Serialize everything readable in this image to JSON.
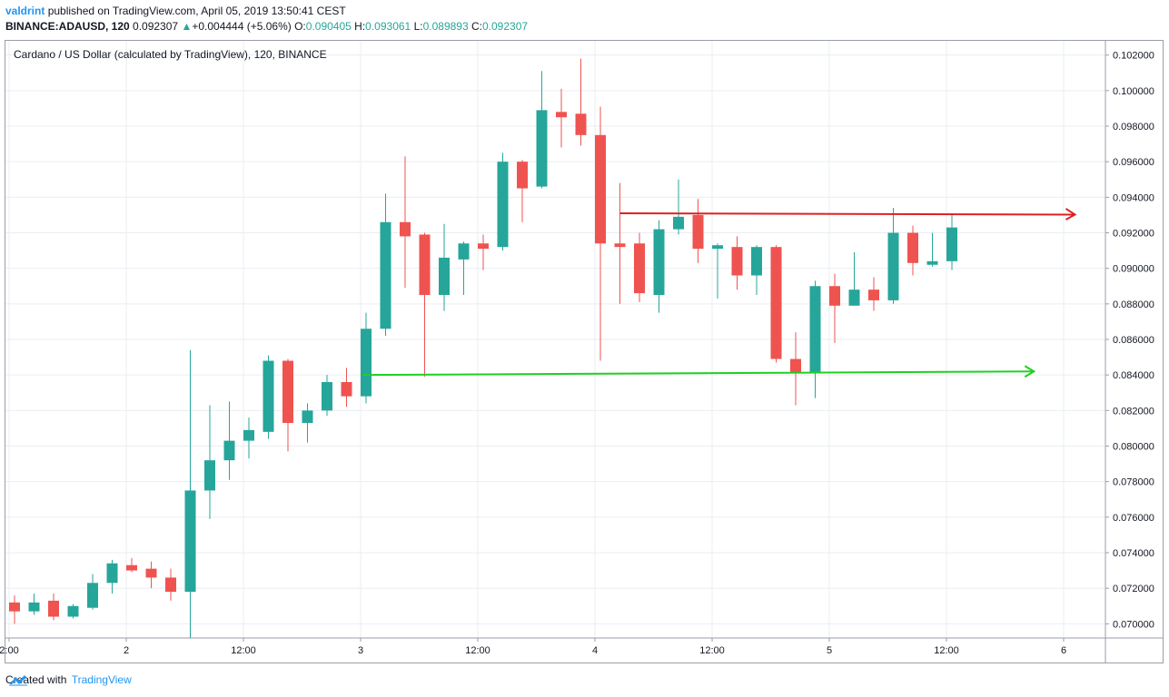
{
  "header": {
    "user": "valdrint",
    "published_text": "published on TradingView.com, April 05, 2019 13:50:41 CEST",
    "symbol": "BINANCE:ADAUSD, 120",
    "last": "0.092307",
    "change_arrow": "▲",
    "change": "+0.004444 (+5.06%)",
    "o_label": "O:",
    "o_value": "0.090405",
    "h_label": "H:",
    "h_value": "0.093061",
    "l_label": "L:",
    "l_value": "0.089893",
    "c_label": "C:",
    "c_value": "0.092307"
  },
  "footer": {
    "created_with": "Created with",
    "brand": "TradingView"
  },
  "colors": {
    "up": "#26a69a",
    "down": "#ef5350",
    "resistance": "#e02020",
    "support": "#20d020",
    "grid": "#e9eef2"
  },
  "chart_data": {
    "type": "candlestick",
    "title": "Cardano / US Dollar (calculated by TradingView), 120, BINANCE",
    "ylim": [
      0.0692,
      0.1028
    ],
    "y_ticks": [
      "0.102000",
      "0.100000",
      "0.098000",
      "0.096000",
      "0.094000",
      "0.092000",
      "0.090000",
      "0.088000",
      "0.086000",
      "0.084000",
      "0.082000",
      "0.080000",
      "0.078000",
      "0.076000",
      "0.074000",
      "0.072000",
      "0.070000"
    ],
    "x_ticks": [
      "2:00",
      "2",
      "12:00",
      "3",
      "12:00",
      "4",
      "12:00",
      "5",
      "12:00",
      "6"
    ],
    "grid": true,
    "candles": [
      {
        "o": 0.0712,
        "h": 0.0716,
        "l": 0.07,
        "c": 0.0707
      },
      {
        "o": 0.0707,
        "h": 0.0717,
        "l": 0.0705,
        "c": 0.0712
      },
      {
        "o": 0.0713,
        "h": 0.0717,
        "l": 0.0702,
        "c": 0.0704
      },
      {
        "o": 0.0704,
        "h": 0.0711,
        "l": 0.0703,
        "c": 0.071
      },
      {
        "o": 0.0709,
        "h": 0.0728,
        "l": 0.0708,
        "c": 0.0723
      },
      {
        "o": 0.0723,
        "h": 0.0736,
        "l": 0.0717,
        "c": 0.0734
      },
      {
        "o": 0.0733,
        "h": 0.0737,
        "l": 0.0729,
        "c": 0.073
      },
      {
        "o": 0.0731,
        "h": 0.0735,
        "l": 0.072,
        "c": 0.0726
      },
      {
        "o": 0.0726,
        "h": 0.0731,
        "l": 0.0713,
        "c": 0.0718
      },
      {
        "o": 0.0718,
        "h": 0.0854,
        "l": 0.0692,
        "c": 0.0775
      },
      {
        "o": 0.0775,
        "h": 0.0823,
        "l": 0.0759,
        "c": 0.0792
      },
      {
        "o": 0.0792,
        "h": 0.0825,
        "l": 0.0781,
        "c": 0.0803
      },
      {
        "o": 0.0803,
        "h": 0.0816,
        "l": 0.0793,
        "c": 0.0809
      },
      {
        "o": 0.0808,
        "h": 0.0851,
        "l": 0.0804,
        "c": 0.0848
      },
      {
        "o": 0.0848,
        "h": 0.0849,
        "l": 0.0797,
        "c": 0.0813
      },
      {
        "o": 0.0813,
        "h": 0.0824,
        "l": 0.0802,
        "c": 0.082
      },
      {
        "o": 0.082,
        "h": 0.084,
        "l": 0.0817,
        "c": 0.0836
      },
      {
        "o": 0.0836,
        "h": 0.0844,
        "l": 0.0822,
        "c": 0.0828
      },
      {
        "o": 0.0828,
        "h": 0.0875,
        "l": 0.0824,
        "c": 0.0866
      },
      {
        "o": 0.0866,
        "h": 0.0942,
        "l": 0.0862,
        "c": 0.0926
      },
      {
        "o": 0.0926,
        "h": 0.0963,
        "l": 0.0889,
        "c": 0.0918
      },
      {
        "o": 0.0919,
        "h": 0.092,
        "l": 0.0839,
        "c": 0.0885
      },
      {
        "o": 0.0885,
        "h": 0.0925,
        "l": 0.0876,
        "c": 0.0906
      },
      {
        "o": 0.0905,
        "h": 0.0915,
        "l": 0.0885,
        "c": 0.0914
      },
      {
        "o": 0.0914,
        "h": 0.0919,
        "l": 0.0899,
        "c": 0.0911
      },
      {
        "o": 0.0912,
        "h": 0.0965,
        "l": 0.091,
        "c": 0.096
      },
      {
        "o": 0.096,
        "h": 0.0961,
        "l": 0.0926,
        "c": 0.0945
      },
      {
        "o": 0.0946,
        "h": 0.1011,
        "l": 0.0945,
        "c": 0.0989
      },
      {
        "o": 0.0988,
        "h": 0.1001,
        "l": 0.0968,
        "c": 0.0985
      },
      {
        "o": 0.0987,
        "h": 0.1018,
        "l": 0.0969,
        "c": 0.0975
      },
      {
        "o": 0.0975,
        "h": 0.0991,
        "l": 0.0848,
        "c": 0.0914
      },
      {
        "o": 0.0914,
        "h": 0.0948,
        "l": 0.088,
        "c": 0.0912
      },
      {
        "o": 0.0914,
        "h": 0.092,
        "l": 0.0881,
        "c": 0.0886
      },
      {
        "o": 0.0885,
        "h": 0.0927,
        "l": 0.0875,
        "c": 0.0922
      },
      {
        "o": 0.0922,
        "h": 0.095,
        "l": 0.0919,
        "c": 0.0929
      },
      {
        "o": 0.093,
        "h": 0.0939,
        "l": 0.0903,
        "c": 0.0911
      },
      {
        "o": 0.0911,
        "h": 0.0914,
        "l": 0.0883,
        "c": 0.0913
      },
      {
        "o": 0.0912,
        "h": 0.0918,
        "l": 0.0888,
        "c": 0.0896
      },
      {
        "o": 0.0896,
        "h": 0.0913,
        "l": 0.0885,
        "c": 0.0912
      },
      {
        "o": 0.0912,
        "h": 0.0913,
        "l": 0.0847,
        "c": 0.0849
      },
      {
        "o": 0.0849,
        "h": 0.0864,
        "l": 0.0823,
        "c": 0.0841
      },
      {
        "o": 0.0841,
        "h": 0.0893,
        "l": 0.0827,
        "c": 0.089
      },
      {
        "o": 0.089,
        "h": 0.0897,
        "l": 0.0858,
        "c": 0.0879
      },
      {
        "o": 0.0879,
        "h": 0.0909,
        "l": 0.0879,
        "c": 0.0888
      },
      {
        "o": 0.0888,
        "h": 0.0895,
        "l": 0.0876,
        "c": 0.0882
      },
      {
        "o": 0.0882,
        "h": 0.0934,
        "l": 0.088,
        "c": 0.092
      },
      {
        "o": 0.092,
        "h": 0.0924,
        "l": 0.0896,
        "c": 0.0903
      },
      {
        "o": 0.0902,
        "h": 0.092,
        "l": 0.0901,
        "c": 0.0904
      },
      {
        "o": 0.0904,
        "h": 0.0931,
        "l": 0.0899,
        "c": 0.0923
      }
    ],
    "resistance_line": {
      "from_index": 31,
      "to_index": 54.3,
      "value": 0.0931
    },
    "support_line": {
      "from_index": 18,
      "to_index": 52.2,
      "value_start": 0.084,
      "value_end": 0.0842
    }
  }
}
